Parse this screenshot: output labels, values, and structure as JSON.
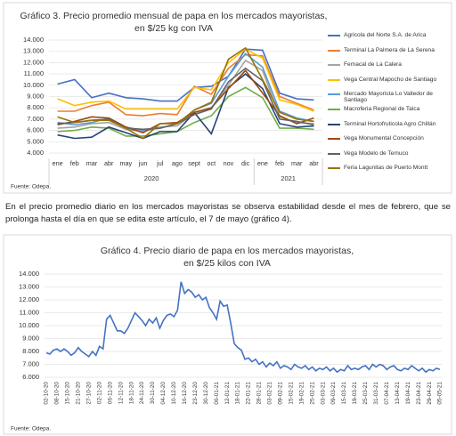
{
  "chart_data": [
    {
      "type": "line",
      "title": [
        "Gráfico 3. Precio promedio mensual de papa en los mercados mayoristas,",
        "en $/25 kg con IVA"
      ],
      "categories": [
        "ene",
        "feb",
        "mar",
        "abr",
        "may",
        "jun",
        "jul",
        "ago",
        "sept",
        "oct",
        "nov",
        "dic",
        "ene",
        "feb",
        "mar",
        "abr"
      ],
      "x_groups": [
        "2020",
        "2021"
      ],
      "ylim": [
        4000,
        14000
      ],
      "yticks": [
        {
          "value": 4000,
          "label": "4.000"
        },
        {
          "value": 5000,
          "label": "5.000"
        },
        {
          "value": 6000,
          "label": "6.000"
        },
        {
          "value": 7000,
          "label": "7.000"
        },
        {
          "value": 8000,
          "label": "8.000"
        },
        {
          "value": 9000,
          "label": "9.000"
        },
        {
          "value": 10000,
          "label": "10.000"
        },
        {
          "value": 11000,
          "label": "11.000"
        },
        {
          "value": 12000,
          "label": "12.000"
        },
        {
          "value": 13000,
          "label": "13.000"
        },
        {
          "value": 14000,
          "label": "14.000"
        }
      ],
      "grid": true,
      "series": [
        {
          "name": "Agricola del Norte S.A. de Arica",
          "color": "#4472c4",
          "values": [
            10100,
            10500,
            8900,
            9300,
            8900,
            8800,
            8600,
            8600,
            9800,
            9900,
            10800,
            13200,
            13100,
            9300,
            8800,
            8700
          ]
        },
        {
          "name": "Terminal La Palmera de La Serena",
          "color": "#ed7d31",
          "values": [
            7700,
            7700,
            8200,
            8500,
            7400,
            7300,
            7500,
            7400,
            9900,
            9200,
            11500,
            12700,
            12600,
            9000,
            8400,
            7800
          ]
        },
        {
          "name": "Femacal de La Calera",
          "color": "#a5a5a5",
          "values": [
            6200,
            6300,
            6600,
            6700,
            6100,
            5900,
            6300,
            6400,
            7500,
            8000,
            10000,
            12200,
            11300,
            7200,
            6700,
            6600
          ]
        },
        {
          "name": "Vega Central Mapocho de Santiago",
          "color": "#ffc000",
          "values": [
            8800,
            8200,
            8500,
            8600,
            7900,
            7900,
            7900,
            7900,
            9800,
            9600,
            12000,
            13200,
            12400,
            8700,
            8300,
            7700
          ]
        },
        {
          "name": "Mercado Mayorista Lo Valledor de Santiago",
          "color": "#5b9bd5",
          "values": [
            6700,
            6500,
            6700,
            7100,
            6300,
            6000,
            6200,
            6600,
            7800,
            8400,
            10800,
            12800,
            11600,
            7700,
            7100,
            6800
          ]
        },
        {
          "name": "Macroferia Regional de Talca",
          "color": "#70ad47",
          "values": [
            5900,
            6000,
            6300,
            6200,
            5500,
            5500,
            5700,
            5900,
            6700,
            7300,
            9000,
            9800,
            8900,
            6200,
            6200,
            6100
          ]
        },
        {
          "name": "Terminal Hortofruticola Agro Chillán",
          "color": "#264478",
          "values": [
            5600,
            5300,
            5400,
            6300,
            5800,
            5300,
            5900,
            5900,
            7600,
            5700,
            9800,
            11000,
            9700,
            6600,
            6300,
            6400
          ]
        },
        {
          "name": "Vega Monumental Concepción",
          "color": "#9e480e",
          "values": [
            6500,
            6800,
            7200,
            7100,
            6300,
            5800,
            6600,
            6700,
            7600,
            8000,
            9700,
            11300,
            9300,
            7300,
            6600,
            7100
          ]
        },
        {
          "name": "Vega Modelo de Temuco",
          "color": "#636363",
          "values": [
            6600,
            6700,
            6900,
            7000,
            6200,
            6100,
            6200,
            6600,
            7400,
            7900,
            10300,
            11500,
            10400,
            7000,
            6800,
            6500
          ]
        },
        {
          "name": "Feria Lagunitas de Puerto Montt",
          "color": "#997300",
          "values": [
            7200,
            6700,
            6900,
            6900,
            6200,
            5300,
            6600,
            6600,
            7800,
            8500,
            12300,
            13300,
            10500,
            7600,
            7000,
            6800
          ]
        }
      ],
      "source": "Fuente: Odepa."
    },
    {
      "type": "line",
      "title": [
        "Gráfico 4. Precio diario de papa en los mercados mayoristas,",
        "en $/25 kilos con IVA"
      ],
      "categories": [
        "02-10-20",
        null,
        null,
        "08-10-20",
        null,
        null,
        "15-10-20",
        null,
        null,
        "21-10-20",
        null,
        null,
        "27-10-20",
        null,
        null,
        "02-11-20",
        null,
        null,
        "06-11-20",
        null,
        null,
        "12-11-20",
        null,
        null,
        "18-11-20",
        null,
        null,
        "24-11-20",
        null,
        null,
        "30-11-20",
        null,
        null,
        "04-12-20",
        null,
        null,
        "10-12-20",
        null,
        null,
        "16-12-20",
        null,
        null,
        "23-12-20",
        null,
        null,
        "30-12-20",
        null,
        null,
        "06-01-21",
        null,
        null,
        "12-01-21",
        null,
        null,
        "18-01-21",
        null,
        null,
        "22-01-21",
        null,
        null,
        "28-01-21",
        null,
        null,
        "03-02-21",
        null,
        null,
        "09-02-21",
        null,
        null,
        "15-02-21",
        null,
        null,
        "19-02-21",
        null,
        null,
        "25-02-21",
        null,
        null,
        "03-03-21",
        null,
        null,
        "09-03-21",
        null,
        null,
        "15-03-21",
        null,
        null,
        "19-03-21",
        null,
        null,
        "25-03-21",
        null,
        null,
        "31-03-21",
        null,
        null,
        "07-04-21",
        null,
        null,
        "13-04-21",
        null,
        null,
        "19-04-21",
        null,
        null,
        "23-04-21",
        null,
        null,
        "29-04-21",
        null,
        null,
        "05-05-21"
      ],
      "ylim": [
        6000,
        14000
      ],
      "yticks": [
        {
          "value": 6000,
          "label": "6.000"
        },
        {
          "value": 7000,
          "label": "7.000"
        },
        {
          "value": 8000,
          "label": "8.000"
        },
        {
          "value": 9000,
          "label": "9.000"
        },
        {
          "value": 10000,
          "label": "10.000"
        },
        {
          "value": 11000,
          "label": "11.000"
        },
        {
          "value": 12000,
          "label": "12.000"
        },
        {
          "value": 13000,
          "label": "13.000"
        },
        {
          "value": 14000,
          "label": "14.000"
        }
      ],
      "grid": true,
      "color": "#4472c4",
      "values": [
        7900,
        7800,
        8100,
        8200,
        8000,
        8200,
        8000,
        7700,
        7900,
        8300,
        8000,
        7800,
        7600,
        8000,
        7700,
        8400,
        8200,
        10500,
        10800,
        10200,
        9600,
        9600,
        9400,
        9800,
        10400,
        11000,
        10700,
        10400,
        10000,
        10500,
        10200,
        10600,
        9800,
        10400,
        10800,
        10900,
        10700,
        11200,
        13400,
        12500,
        12800,
        12600,
        12200,
        12400,
        12000,
        12200,
        11400,
        11000,
        10500,
        11900,
        11500,
        11600,
        10200,
        8600,
        8300,
        8100,
        7400,
        7500,
        7200,
        7400,
        7000,
        7200,
        6800,
        7100,
        6900,
        7200,
        6700,
        6900,
        6800,
        6600,
        7000,
        6800,
        6700,
        6900,
        6600,
        6800,
        6500,
        6700,
        6600,
        6800,
        6500,
        6700,
        6400,
        6600,
        6500,
        6900,
        6600,
        6700,
        6600,
        6800,
        6900,
        6600,
        7000,
        6800,
        7000,
        6900,
        6600,
        6800,
        6900,
        6600,
        6500,
        6700,
        6600,
        6900,
        6700,
        6500,
        6700,
        6400,
        6600,
        6500,
        6700,
        6600
      ],
      "source": "Fuente: Odepa."
    }
  ],
  "paragraph": "En el precio promedio diario en los mercados mayoristas se observa estabilidad desde el mes de febrero, que se prolonga hasta el día en que se edita este artículo, el 7 de mayo (gráfico 4)."
}
